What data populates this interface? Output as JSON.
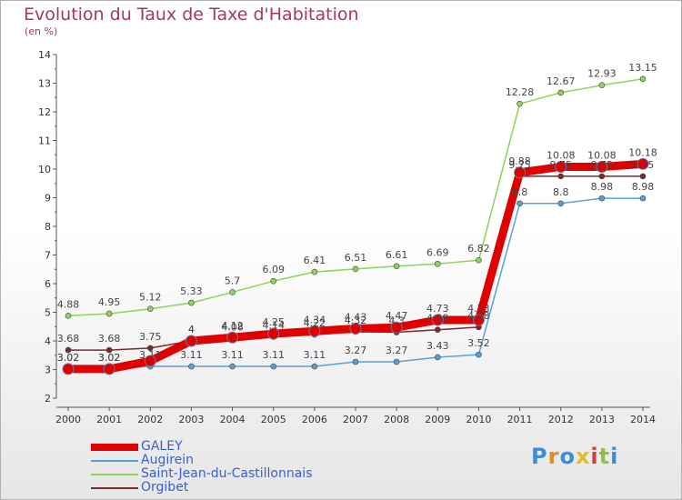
{
  "header": {
    "title": "Evolution du Taux de Taxe d'Habitation",
    "subtitle": "(en %)"
  },
  "brand": {
    "text": "Proxiti"
  },
  "chart_data": {
    "type": "line",
    "x": [
      2000,
      2001,
      2002,
      2003,
      2004,
      2005,
      2006,
      2007,
      2008,
      2009,
      2010,
      2011,
      2012,
      2013,
      2014
    ],
    "ylim": [
      2,
      14
    ],
    "yticks": [
      2,
      3,
      4,
      5,
      6,
      7,
      8,
      9,
      10,
      11,
      12,
      13,
      14
    ],
    "grid": false,
    "legend_position": "bottom-left",
    "series": [
      {
        "name": "GALEY",
        "color": "#e00000",
        "values": [
          3.02,
          3.02,
          3.3,
          4,
          4.12,
          4.25,
          4.34,
          4.43,
          4.47,
          4.73,
          4.73,
          9.88,
          10.08,
          10.08,
          10.18
        ],
        "labels": [
          "3.02",
          "3.02",
          "",
          "4",
          "4.12",
          "4.25",
          "4.34",
          "4.43",
          "4.47",
          "4.73",
          "4.73",
          "9.88",
          "10.08",
          "10.08",
          "10.18"
        ]
      },
      {
        "name": "Augirein",
        "color": "#5aa0d8",
        "values": [
          3.02,
          3.02,
          3.11,
          3.11,
          3.11,
          3.11,
          3.11,
          3.27,
          3.27,
          3.43,
          3.52,
          8.8,
          8.8,
          8.98,
          8.98
        ],
        "labels": [
          "3.02",
          "3.02",
          "3.11",
          "3.11",
          "3.11",
          "3.11",
          "3.11",
          "3.27",
          "3.27",
          "3.43",
          "3.52",
          "8.8",
          "8.8",
          "8.98",
          "8.98"
        ]
      },
      {
        "name": "Saint-Jean-du-Castillonnais",
        "color": "#8ed35a",
        "values": [
          4.88,
          4.95,
          5.12,
          5.33,
          5.7,
          6.09,
          6.41,
          6.51,
          6.61,
          6.69,
          6.82,
          12.28,
          12.67,
          12.93,
          13.15
        ],
        "labels": [
          "4.88",
          "4.95",
          "5.12",
          "5.33",
          "5.7",
          "6.09",
          "6.41",
          "6.51",
          "6.61",
          "6.69",
          "6.82",
          "12.28",
          "12.67",
          "12.93",
          "13.15"
        ]
      },
      {
        "name": "Orgibet",
        "color": "#7a2a2a",
        "values": [
          3.68,
          3.68,
          3.75,
          4,
          4.08,
          4.14,
          4.22,
          4.32,
          4.3,
          4.39,
          4.48,
          9.75,
          9.75,
          9.75,
          9.75
        ],
        "labels": [
          "3.68",
          "3.68",
          "3.75",
          "4",
          "4.08",
          "4.14",
          "4.22",
          "4.32",
          "4.3",
          "4.39",
          "4.48",
          "9.75",
          "9.75",
          "9.75",
          "9.75"
        ]
      }
    ]
  }
}
